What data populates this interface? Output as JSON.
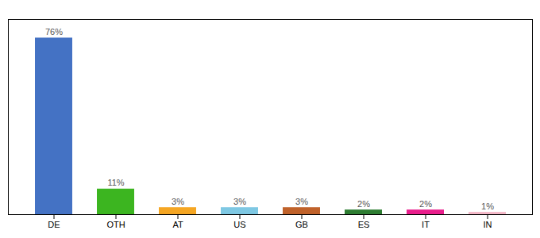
{
  "chart_data": {
    "type": "bar",
    "categories": [
      "DE",
      "OTH",
      "AT",
      "US",
      "GB",
      "ES",
      "IT",
      "IN"
    ],
    "values": [
      76,
      11,
      3,
      3,
      3,
      2,
      2,
      1
    ],
    "value_labels": [
      "76%",
      "11%",
      "3%",
      "3%",
      "3%",
      "2%",
      "2%",
      "1%"
    ],
    "colors": [
      "#4472C4",
      "#3CB520",
      "#F5A623",
      "#7EC8E3",
      "#C0622A",
      "#2E7D32",
      "#E91E8C",
      "#F4B8C8"
    ],
    "ylim": [
      0,
      84
    ],
    "data_labels": true,
    "tick_labels": "x"
  }
}
